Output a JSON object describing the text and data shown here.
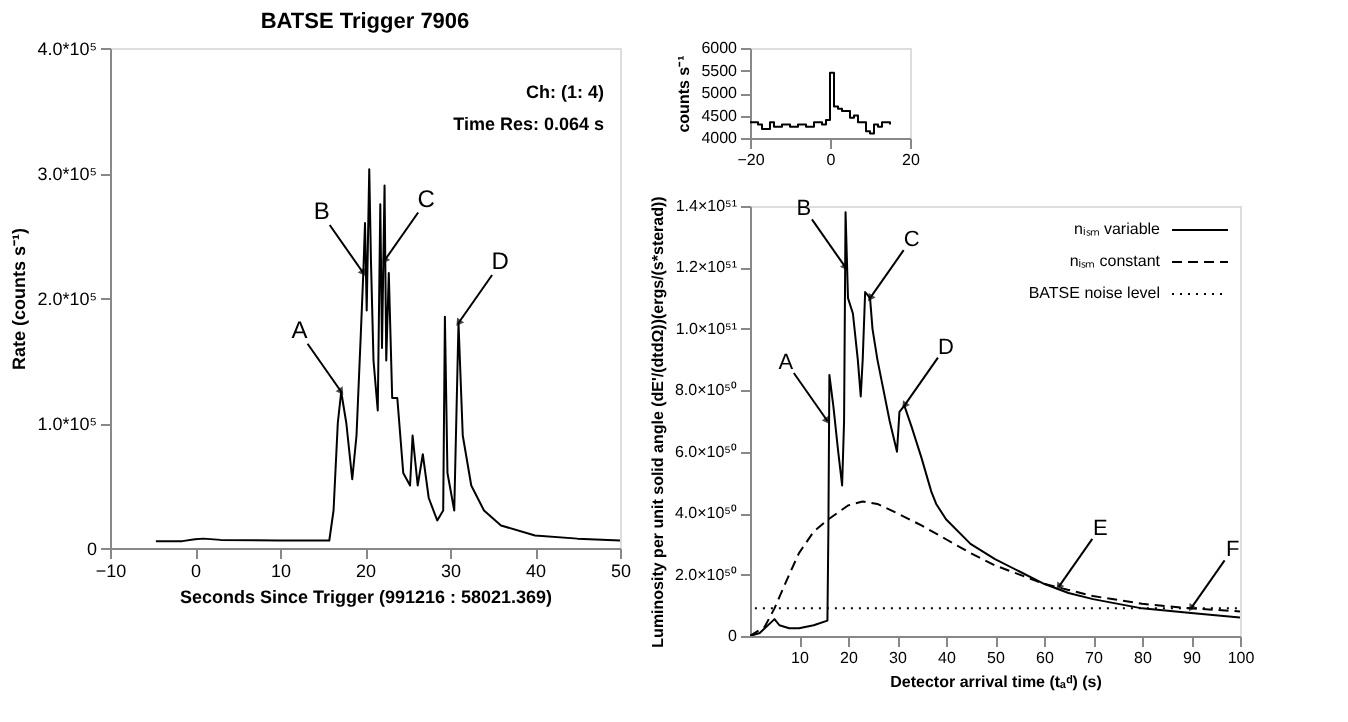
{
  "chart_data": [
    {
      "type": "line",
      "title": "BATSE Trigger 7906",
      "xlabel": "Seconds Since Trigger (991216 : 58021.369)",
      "ylabel": "Rate (counts s⁻¹)",
      "x": [
        -4.6,
        -1.5,
        0,
        1,
        3,
        10,
        15.8,
        16.3,
        16.8,
        17.2,
        17.8,
        18.5,
        19,
        19.5,
        19.8,
        20.0,
        20.2,
        20.5,
        20.7,
        21,
        21.5,
        21.8,
        22.0,
        22.3,
        22.5,
        22.8,
        23.2,
        23.8,
        24.5,
        25.3,
        25.6,
        26.2,
        26.8,
        27.5,
        28.5,
        29.2,
        29.4,
        29.7,
        30.5,
        31.0,
        31.5,
        32.5,
        34,
        36,
        40,
        45,
        50
      ],
      "values": [
        5500,
        5500,
        7000,
        7500,
        6500,
        6000,
        6000,
        30000,
        100000,
        125000,
        100000,
        55000,
        90000,
        170000,
        220000,
        260000,
        190000,
        303000,
        230000,
        150000,
        110000,
        275000,
        160000,
        290000,
        150000,
        220000,
        120000,
        120000,
        60000,
        50000,
        90000,
        50000,
        75000,
        40000,
        22000,
        30000,
        185000,
        60000,
        30000,
        180000,
        90000,
        50000,
        30000,
        18000,
        10000,
        7500,
        6000
      ],
      "color": "#000000",
      "line_style": "solid",
      "xlim": [
        -10,
        50
      ],
      "xticks": [
        -10,
        0,
        10,
        20,
        30,
        40,
        50
      ],
      "ylim": [
        0,
        400000
      ],
      "yticks": [
        0,
        {
          "value": 100000,
          "label": "1.0*10⁵"
        },
        {
          "value": 200000,
          "label": "2.0*10⁵"
        },
        {
          "value": 300000,
          "label": "3.0*10⁵"
        },
        {
          "value": 400000,
          "label": "4.0*10⁵"
        }
      ],
      "annotations": [
        "Ch: (1: 4)",
        "Time Res: 0.064 s",
        {
          "text": "A",
          "x": 17.2,
          "y": 125000
        },
        {
          "text": "B",
          "x": 19.8,
          "y": 220000
        },
        {
          "text": "C",
          "x": 22.3,
          "y": 230000
        },
        {
          "text": "D",
          "x": 31.0,
          "y": 180000
        }
      ],
      "grid": false,
      "legend": false
    },
    {
      "type": "step",
      "ylabel": "counts s⁻¹",
      "x": [
        -20,
        -18,
        -17,
        -15,
        -14,
        -12,
        -10,
        -8,
        -6,
        -4,
        -2,
        -1,
        0,
        1,
        2,
        3,
        5,
        6,
        7,
        9,
        10,
        11,
        12,
        13,
        15
      ],
      "values": [
        4350,
        4300,
        4200,
        4350,
        4250,
        4300,
        4250,
        4300,
        4250,
        4350,
        4300,
        4400,
        5450,
        4700,
        4650,
        4600,
        4450,
        4500,
        4350,
        4150,
        4100,
        4300,
        4250,
        4350,
        4300
      ],
      "color": "#000000",
      "line_style": "solid",
      "xlim": [
        -20,
        20
      ],
      "xticks": [
        -20,
        0,
        20
      ],
      "ylim": [
        4000,
        6000
      ],
      "yticks": [
        4000,
        4500,
        5000,
        5500,
        6000
      ],
      "grid": false,
      "legend": false
    },
    {
      "type": "line",
      "xlabel": "Detector arrival time (tₐᵈ) (s)",
      "ylabel": "Luminosity per unit solid angle (dE'/(dtdΩ))(ergs/(s*sterad))",
      "series": [
        {
          "name": "nᵢₛₘ variable",
          "color": "#000000",
          "line_style": "solid",
          "x": [
            0,
            2,
            5,
            6,
            8,
            10,
            13,
            15.8,
            16,
            16.2,
            17,
            18,
            18.8,
            19.2,
            19.5,
            20,
            21,
            22,
            22.6,
            23,
            23.5,
            24.5,
            25,
            26,
            27,
            28.5,
            30,
            30.5,
            31.5,
            33,
            35,
            37,
            38,
            40,
            45,
            50,
            55,
            60,
            65,
            70,
            80,
            90,
            100
          ],
          "values": [
            0,
            1e+49,
            5.5e+49,
            3.5e+49,
            2.5e+49,
            2.5e+49,
            3.5e+49,
            5e+49,
            3.5e+50,
            8.5e+50,
            7.5e+50,
            6e+50,
            4.9e+50,
            7e+50,
            1.38e+51,
            1.1e+51,
            1.05e+51,
            9e+50,
            7.8e+50,
            9e+50,
            1.12e+51,
            1.1e+51,
            1e+51,
            9e+50,
            8.2e+50,
            7e+50,
            6e+50,
            7.3e+50,
            7.5e+50,
            6.8e+50,
            5.8e+50,
            4.7e+50,
            4.3e+50,
            3.8e+50,
            3e+50,
            2.5e+50,
            2.1e+50,
            1.7e+50,
            1.4e+50,
            1.2e+50,
            9e+49,
            7.5e+49,
            6e+49
          ]
        },
        {
          "name": "nᵢₛₘ constant",
          "color": "#000000",
          "line_style": "dashed",
          "x": [
            0,
            3,
            5,
            8,
            10,
            13,
            16,
            20,
            23,
            26,
            30,
            35,
            40,
            45,
            50,
            55,
            60,
            65,
            70,
            80,
            90,
            100
          ],
          "values": [
            0,
            3e+49,
            9e+49,
            2e+50,
            2.7e+50,
            3.4e+50,
            3.8e+50,
            4.25e+50,
            4.38e+50,
            4.3e+50,
            4e+50,
            3.6e+50,
            3.15e+50,
            2.7e+50,
            2.3e+50,
            2e+50,
            1.7e+50,
            1.5e+50,
            1.3e+50,
            1.05e+50,
            9e+49,
            8e+49
          ]
        },
        {
          "name": "BATSE noise level",
          "color": "#000000",
          "line_style": "dotted",
          "x": [
            1,
            100
          ],
          "values": [
            9e+49,
            9e+49
          ]
        }
      ],
      "xlim": [
        0,
        100
      ],
      "xticks": [
        10,
        20,
        30,
        40,
        50,
        60,
        70,
        80,
        90,
        100
      ],
      "ylim": [
        0,
        1.4e+51
      ],
      "yticks": [
        0,
        {
          "value": 2e+50,
          "label": "2.0×10⁵⁰"
        },
        {
          "value": 4e+50,
          "label": "4.0×10⁵⁰"
        },
        {
          "value": 6e+50,
          "label": "6.0×10⁵⁰"
        },
        {
          "value": 8e+50,
          "label": "8.0×10⁵⁰"
        },
        {
          "value": 1e+51,
          "label": "1.0×10⁵¹"
        },
        {
          "value": 1.2e+51,
          "label": "1.2×10⁵¹"
        },
        {
          "value": 1.4e+51,
          "label": "1.4×10⁵¹"
        }
      ],
      "annotations": [
        {
          "text": "A",
          "x": 15.8,
          "y": 7e+50
        },
        {
          "text": "B",
          "x": 19.5,
          "y": 1.2e+51
        },
        {
          "text": "C",
          "x": 24.5,
          "y": 1.1e+51
        },
        {
          "text": "D",
          "x": 31.5,
          "y": 7.5e+50
        },
        {
          "text": "E",
          "x": 63,
          "y": 1.6e+50
        },
        {
          "text": "F",
          "x": 90,
          "y": 9e+49
        }
      ],
      "grid": false,
      "legend": "top right"
    }
  ]
}
